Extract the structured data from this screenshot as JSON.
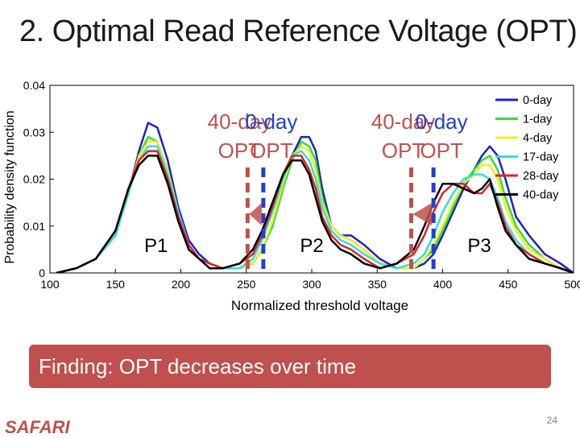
{
  "slide": {
    "title": "2. Optimal Read Reference Voltage (OPT)",
    "finding": "Finding: OPT decreases over time",
    "logo": "SAFARI",
    "page_number": "24"
  },
  "colors": {
    "finding_bg": "#c0504d",
    "logo": "#c0504d",
    "opt_40day": "#c0504d",
    "opt_0day": "#1f3fd6",
    "arrow": "#c0504d"
  },
  "chart_data": {
    "type": "line",
    "xlabel": "Normalized threshold voltage",
    "ylabel": "Probability density function",
    "xlim": [
      100,
      500
    ],
    "ylim": [
      0,
      0.04
    ],
    "xticks": [
      "100",
      "150",
      "200",
      "250",
      "300",
      "350",
      "400",
      "450",
      "500"
    ],
    "yticks": [
      "0",
      "0.01",
      "0.02",
      "0.03",
      "0.04"
    ],
    "grid": false,
    "legend_position": "top-right",
    "series": [
      {
        "name": "0-day",
        "color": "#1f1fcc",
        "x": [
          105,
          120,
          135,
          150,
          160,
          168,
          175,
          182,
          190,
          198,
          206,
          214,
          222,
          232,
          245,
          255,
          262,
          270,
          278,
          285,
          292,
          298,
          303,
          308,
          315,
          322,
          330,
          340,
          352,
          365,
          378,
          386,
          393,
          400,
          408,
          416,
          424,
          430,
          436,
          442,
          448,
          456,
          466,
          478,
          490,
          500
        ],
        "y": [
          0.0,
          0.001,
          0.003,
          0.008,
          0.017,
          0.026,
          0.032,
          0.031,
          0.024,
          0.014,
          0.007,
          0.004,
          0.002,
          0.001,
          0.001,
          0.002,
          0.005,
          0.01,
          0.018,
          0.025,
          0.029,
          0.029,
          0.026,
          0.018,
          0.01,
          0.008,
          0.008,
          0.006,
          0.003,
          0.001,
          0.001,
          0.002,
          0.004,
          0.008,
          0.013,
          0.018,
          0.022,
          0.025,
          0.027,
          0.025,
          0.02,
          0.012,
          0.008,
          0.004,
          0.002,
          0.0
        ]
      },
      {
        "name": "1-day",
        "color": "#33dd33",
        "x": [
          105,
          120,
          135,
          150,
          160,
          168,
          175,
          182,
          190,
          198,
          206,
          214,
          222,
          232,
          245,
          255,
          262,
          270,
          278,
          285,
          292,
          298,
          303,
          308,
          315,
          322,
          330,
          340,
          352,
          365,
          378,
          386,
          393,
          400,
          408,
          416,
          424,
          430,
          436,
          442,
          448,
          456,
          466,
          478,
          490,
          500
        ],
        "y": [
          0.0,
          0.001,
          0.003,
          0.008,
          0.017,
          0.025,
          0.029,
          0.028,
          0.022,
          0.013,
          0.006,
          0.003,
          0.002,
          0.001,
          0.001,
          0.002,
          0.005,
          0.01,
          0.018,
          0.024,
          0.028,
          0.027,
          0.024,
          0.016,
          0.01,
          0.008,
          0.007,
          0.005,
          0.002,
          0.001,
          0.001,
          0.003,
          0.005,
          0.009,
          0.014,
          0.019,
          0.022,
          0.024,
          0.025,
          0.022,
          0.016,
          0.01,
          0.006,
          0.003,
          0.001,
          0.0
        ]
      },
      {
        "name": "4-day",
        "color": "#eeee22",
        "x": [
          105,
          120,
          135,
          150,
          160,
          168,
          175,
          182,
          190,
          198,
          206,
          214,
          222,
          232,
          245,
          255,
          262,
          270,
          278,
          285,
          292,
          298,
          303,
          308,
          315,
          322,
          330,
          340,
          352,
          365,
          378,
          386,
          393,
          400,
          408,
          416,
          424,
          430,
          436,
          442,
          448,
          456,
          466,
          478,
          490,
          500
        ],
        "y": [
          0.0,
          0.001,
          0.003,
          0.008,
          0.017,
          0.025,
          0.028,
          0.028,
          0.022,
          0.013,
          0.006,
          0.003,
          0.002,
          0.001,
          0.001,
          0.002,
          0.005,
          0.011,
          0.019,
          0.025,
          0.027,
          0.026,
          0.022,
          0.015,
          0.01,
          0.008,
          0.007,
          0.005,
          0.002,
          0.001,
          0.001,
          0.003,
          0.006,
          0.01,
          0.015,
          0.019,
          0.021,
          0.023,
          0.023,
          0.02,
          0.014,
          0.009,
          0.005,
          0.003,
          0.001,
          0.0
        ]
      },
      {
        "name": "17-day",
        "color": "#33dddd",
        "x": [
          105,
          120,
          135,
          150,
          160,
          168,
          175,
          182,
          190,
          198,
          206,
          214,
          222,
          232,
          245,
          255,
          262,
          270,
          278,
          285,
          292,
          298,
          303,
          308,
          315,
          322,
          330,
          340,
          352,
          365,
          378,
          386,
          393,
          400,
          408,
          416,
          424,
          430,
          436,
          442,
          448,
          456,
          466,
          478,
          490,
          500
        ],
        "y": [
          0.0,
          0.001,
          0.003,
          0.008,
          0.017,
          0.024,
          0.027,
          0.027,
          0.021,
          0.013,
          0.006,
          0.003,
          0.002,
          0.001,
          0.001,
          0.003,
          0.007,
          0.013,
          0.02,
          0.025,
          0.026,
          0.024,
          0.02,
          0.014,
          0.009,
          0.007,
          0.006,
          0.004,
          0.002,
          0.001,
          0.002,
          0.004,
          0.008,
          0.013,
          0.017,
          0.02,
          0.021,
          0.021,
          0.02,
          0.016,
          0.011,
          0.007,
          0.004,
          0.002,
          0.001,
          0.0
        ]
      },
      {
        "name": "28-day",
        "color": "#dd2222",
        "x": [
          105,
          120,
          135,
          150,
          160,
          168,
          175,
          182,
          190,
          198,
          206,
          214,
          222,
          232,
          245,
          255,
          262,
          270,
          278,
          285,
          292,
          298,
          303,
          308,
          315,
          322,
          330,
          340,
          352,
          365,
          378,
          386,
          393,
          400,
          408,
          416,
          424,
          430,
          436,
          442,
          448,
          456,
          466,
          478,
          490,
          500
        ],
        "y": [
          0.0,
          0.001,
          0.003,
          0.009,
          0.018,
          0.024,
          0.026,
          0.026,
          0.02,
          0.012,
          0.006,
          0.003,
          0.002,
          0.001,
          0.002,
          0.004,
          0.008,
          0.014,
          0.021,
          0.025,
          0.025,
          0.022,
          0.018,
          0.012,
          0.008,
          0.006,
          0.005,
          0.003,
          0.001,
          0.002,
          0.004,
          0.008,
          0.013,
          0.017,
          0.019,
          0.019,
          0.017,
          0.017,
          0.019,
          0.015,
          0.01,
          0.006,
          0.004,
          0.002,
          0.001,
          0.0
        ]
      },
      {
        "name": "40-day",
        "color": "#000000",
        "x": [
          105,
          120,
          135,
          150,
          160,
          168,
          175,
          182,
          190,
          198,
          206,
          214,
          222,
          232,
          245,
          255,
          262,
          270,
          278,
          285,
          292,
          298,
          303,
          308,
          315,
          322,
          330,
          340,
          352,
          365,
          378,
          386,
          393,
          400,
          408,
          416,
          424,
          430,
          436,
          442,
          448,
          456,
          466,
          478,
          490,
          500
        ],
        "y": [
          0.0,
          0.001,
          0.003,
          0.009,
          0.018,
          0.023,
          0.025,
          0.025,
          0.019,
          0.011,
          0.005,
          0.003,
          0.001,
          0.001,
          0.002,
          0.005,
          0.009,
          0.015,
          0.021,
          0.024,
          0.024,
          0.021,
          0.016,
          0.011,
          0.007,
          0.005,
          0.004,
          0.002,
          0.001,
          0.002,
          0.005,
          0.01,
          0.015,
          0.019,
          0.019,
          0.018,
          0.017,
          0.018,
          0.02,
          0.014,
          0.009,
          0.006,
          0.003,
          0.002,
          0.001,
          0.0
        ]
      }
    ],
    "annotations": {
      "opt_lines": [
        {
          "label_top": "40-day",
          "label_bottom": "OPT",
          "x": 251,
          "color": "#c0504d"
        },
        {
          "label_top": "0-day",
          "label_bottom": "OPT",
          "x": 263,
          "color": "#1f3fd6"
        },
        {
          "label_top": "40-day",
          "label_bottom": "OPT",
          "x": 376,
          "color": "#c0504d"
        },
        {
          "label_top": "0-day",
          "label_bottom": "OPT",
          "x": 393,
          "color": "#1f3fd6"
        }
      ],
      "peaks": [
        {
          "label": "P1",
          "x": 181,
          "y": 0.0005
        },
        {
          "label": "P2",
          "x": 300,
          "y": 0.0005
        },
        {
          "label": "P3",
          "x": 428,
          "y": 0.0005
        }
      ]
    }
  }
}
